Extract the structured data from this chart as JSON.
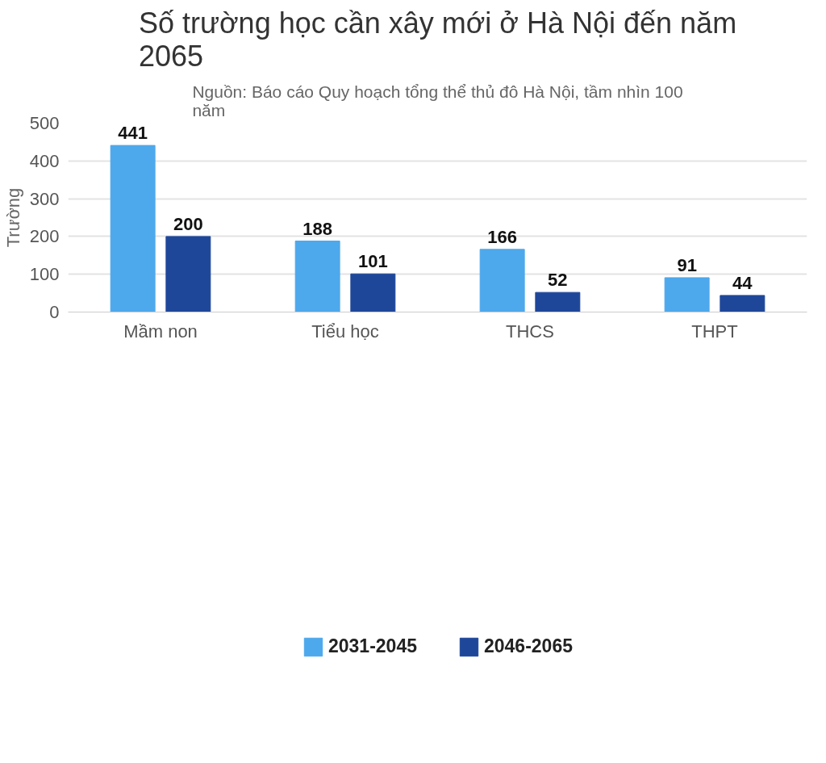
{
  "chart_data": {
    "type": "bar",
    "title": "Số trường học cần xây mới ở Hà Nội đến năm 2065",
    "subtitle": "Nguồn: Báo cáo Quy hoạch tổng thể thủ đô Hà Nội, tầm nhìn 100 năm",
    "ylabel": "Trường",
    "categories": [
      "Mầm non",
      "Tiểu học",
      "THCS",
      "THPT"
    ],
    "series": [
      {
        "name": "2031-2045",
        "color": "#4ea8ec",
        "values": [
          441,
          188,
          166,
          91
        ]
      },
      {
        "name": "2046-2065",
        "color": "#1f4799",
        "values": [
          200,
          101,
          52,
          44
        ]
      }
    ],
    "ylim": [
      0,
      500
    ],
    "yticks": [
      0,
      100,
      200,
      300,
      400,
      500
    ],
    "grid": "y",
    "legend": "bottom",
    "data_labels": true
  }
}
